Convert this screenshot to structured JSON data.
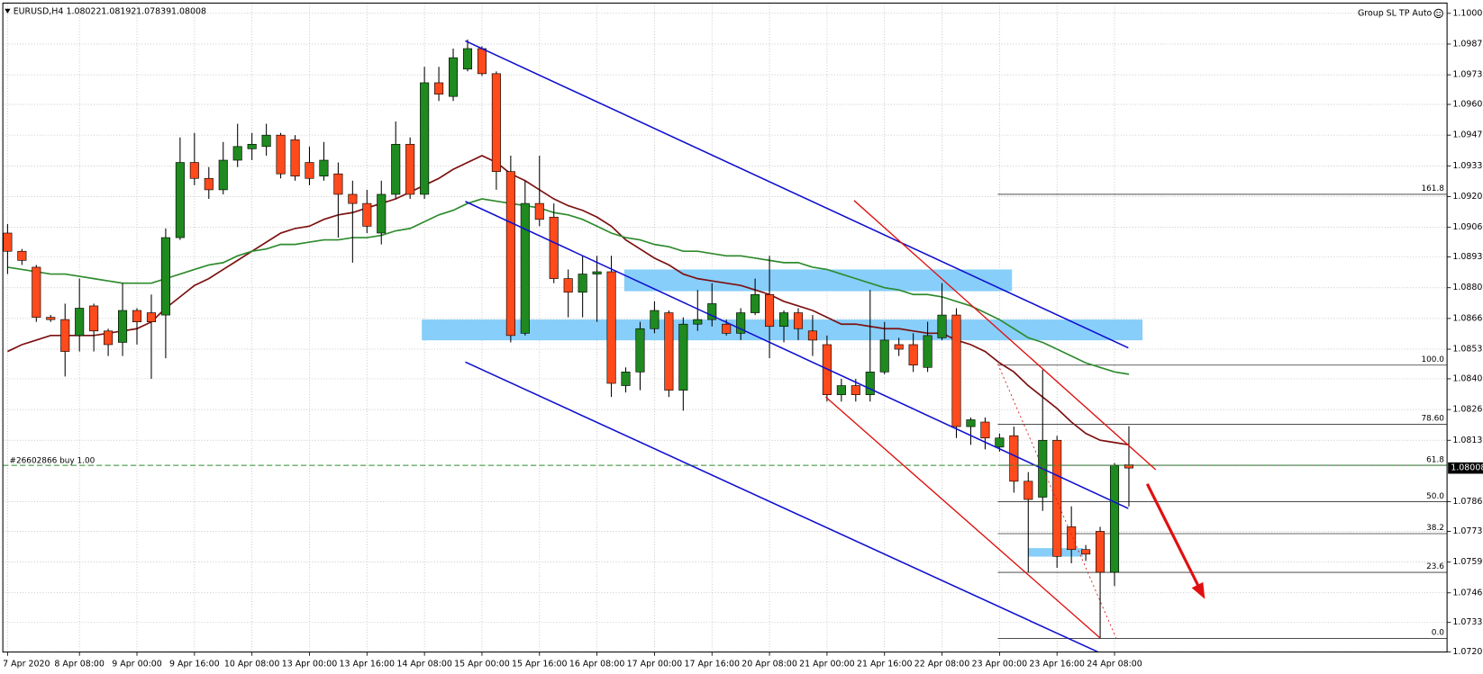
{
  "chart_data": {
    "type": "candlestick",
    "symbol": "EURUSD,H4",
    "toolbar_text": "Group SL TP Auto",
    "categories": [
      "7 Apr 2020",
      null,
      null,
      null,
      null,
      "8 Apr 08:00",
      null,
      null,
      null,
      "9 Apr 00:00",
      null,
      null,
      null,
      "9 Apr 16:00",
      null,
      null,
      null,
      "10 Apr 08:00",
      null,
      null,
      null,
      "13 Apr 00:00",
      null,
      null,
      null,
      "13 Apr 16:00",
      null,
      null,
      null,
      "14 Apr 08:00",
      null,
      null,
      null,
      "15 Apr 00:00",
      null,
      null,
      null,
      "15 Apr 16:00",
      null,
      null,
      null,
      "16 Apr 08:00",
      null,
      null,
      null,
      "17 Apr 00:00",
      null,
      null,
      null,
      "17 Apr 16:00",
      null,
      null,
      null,
      "20 Apr 08:00",
      null,
      null,
      null,
      "21 Apr 00:00",
      null,
      null,
      null,
      "21 Apr 16:00",
      null,
      null,
      null,
      "22 Apr 08:00",
      null,
      null,
      null,
      "23 Apr 00:00",
      null,
      null,
      null,
      "23 Apr 16:00",
      null,
      null,
      null,
      "24 Apr 08:00",
      null
    ],
    "open": [
      1.0904,
      1.0896,
      1.0889,
      1.0867,
      1.0866,
      1.0859,
      1.0872,
      1.0861,
      1.0856,
      1.087,
      1.0869,
      1.0868,
      1.0902,
      1.0935,
      1.0928,
      1.0923,
      1.0936,
      1.0941,
      1.0942,
      1.0947,
      1.0945,
      1.0935,
      1.0929,
      1.093,
      1.0921,
      1.0917,
      1.0904,
      1.0921,
      1.0943,
      1.0921,
      1.097,
      1.0964,
      1.0976,
      1.0985,
      1.0974,
      1.0931,
      1.086,
      1.0917,
      1.0911,
      1.0884,
      1.0878,
      1.0886,
      1.0887,
      1.0837,
      1.0843,
      1.0862,
      1.0869,
      1.0835,
      1.0864,
      1.0866,
      1.0864,
      1.086,
      1.0869,
      1.0877,
      1.0863,
      1.0869,
      1.0861,
      1.0855,
      1.0833,
      1.0837,
      1.0833,
      1.0843,
      1.0855,
      1.0855,
      1.0845,
      1.0858,
      1.0868,
      1.0819,
      1.0821,
      1.081,
      1.0815,
      1.0795,
      1.0788,
      1.0813,
      1.0775,
      1.0765,
      1.0773,
      1.0755,
      1.08022
    ],
    "high": [
      1.0908,
      1.0897,
      1.089,
      1.0868,
      1.0873,
      1.0884,
      1.0873,
      1.0862,
      1.0882,
      1.0871,
      1.0877,
      1.0906,
      1.0946,
      1.0948,
      1.0933,
      1.0944,
      1.0952,
      1.0948,
      1.0952,
      1.0948,
      1.0947,
      1.0942,
      1.0944,
      1.0935,
      1.0927,
      1.0923,
      1.0927,
      1.0953,
      1.0946,
      1.0977,
      1.0977,
      1.0985,
      1.0989,
      1.0986,
      1.0975,
      1.0938,
      1.0927,
      1.0938,
      1.0917,
      1.0888,
      1.0894,
      1.0894,
      1.0894,
      1.0845,
      1.0865,
      1.0874,
      1.087,
      1.0867,
      1.0879,
      1.0882,
      1.0866,
      1.0871,
      1.0884,
      1.0894,
      1.087,
      1.0871,
      1.0868,
      1.0859,
      1.084,
      1.084,
      1.0879,
      1.0865,
      1.0858,
      1.086,
      1.0865,
      1.0882,
      1.0871,
      1.0823,
      1.0823,
      1.0816,
      1.0819,
      1.0799,
      1.0844,
      1.0815,
      1.0784,
      1.0767,
      1.0775,
      1.0803,
      1.08192
    ],
    "low": [
      1.0886,
      1.089,
      1.0865,
      1.0865,
      1.0841,
      1.0852,
      1.0852,
      1.085,
      1.085,
      1.0855,
      1.084,
      1.0849,
      1.0901,
      1.0925,
      1.0919,
      1.0921,
      1.0933,
      1.0936,
      1.0938,
      1.0928,
      1.0927,
      1.0925,
      1.0927,
      1.0902,
      1.0891,
      1.0904,
      1.0899,
      1.0919,
      1.0919,
      1.0919,
      1.0962,
      1.0962,
      1.0975,
      1.0973,
      1.0923,
      1.0856,
      1.0859,
      1.0907,
      1.0882,
      1.0867,
      1.0867,
      1.0865,
      1.0832,
      1.0834,
      1.0835,
      1.086,
      1.0832,
      1.0826,
      1.0861,
      1.0863,
      1.0859,
      1.0857,
      1.0868,
      1.0849,
      1.0856,
      1.0857,
      1.085,
      1.083,
      1.083,
      1.083,
      1.083,
      1.0842,
      1.085,
      1.0843,
      1.0843,
      1.0857,
      1.0814,
      1.0811,
      1.0809,
      1.0808,
      1.079,
      1.0755,
      1.0782,
      1.0757,
      1.0759,
      1.076,
      1.0726,
      1.0749,
      1.07839
    ],
    "close": [
      1.0896,
      1.0892,
      1.0867,
      1.0866,
      1.0852,
      1.0871,
      1.0861,
      1.0855,
      1.087,
      1.0865,
      1.0865,
      1.0902,
      1.0935,
      1.0928,
      1.0923,
      1.0936,
      1.0942,
      1.0943,
      1.0947,
      1.093,
      1.0929,
      1.0928,
      1.0936,
      1.0921,
      1.0917,
      1.0907,
      1.0921,
      1.0943,
      1.0921,
      1.097,
      1.0965,
      1.0981,
      1.0985,
      1.0974,
      1.0931,
      1.0859,
      1.0917,
      1.091,
      1.0884,
      1.0878,
      1.0886,
      1.0887,
      1.0838,
      1.0843,
      1.0862,
      1.087,
      1.0835,
      1.0864,
      1.0866,
      1.0873,
      1.086,
      1.0869,
      1.0877,
      1.0863,
      1.0869,
      1.0862,
      1.0857,
      1.0833,
      1.0837,
      1.0833,
      1.0843,
      1.0857,
      1.0853,
      1.0846,
      1.0859,
      1.0868,
      1.0819,
      1.0822,
      1.0814,
      1.0814,
      1.0795,
      1.0787,
      1.0813,
      1.0762,
      1.0765,
      1.0763,
      1.0755,
      1.0802,
      1.08008
    ],
    "up_color": "#1f8a1f",
    "down_color": "#ff4a1c",
    "moving_averages": [
      {
        "color": "#7d1010",
        "values": [
          1.0852,
          1.0855,
          1.0857,
          1.0859,
          1.0859,
          1.0859,
          1.0859,
          1.086,
          1.0861,
          1.0862,
          1.0865,
          1.0871,
          1.0876,
          1.0881,
          1.0884,
          1.0888,
          1.0892,
          1.0896,
          1.09,
          1.0904,
          1.0906,
          1.0907,
          1.091,
          1.0912,
          1.0913,
          1.0915,
          1.0917,
          1.0919,
          1.0922,
          1.0925,
          1.0928,
          1.0932,
          1.0935,
          1.0938,
          1.0935,
          1.093,
          1.0927,
          1.0923,
          1.0919,
          1.0916,
          1.0914,
          1.0911,
          1.0907,
          1.0901,
          1.0897,
          1.0893,
          1.089,
          1.0886,
          1.0884,
          1.0883,
          1.0882,
          1.0881,
          1.0879,
          1.0877,
          1.0874,
          1.0872,
          1.087,
          1.0867,
          1.0864,
          1.0864,
          1.0863,
          1.0862,
          1.0862,
          1.0861,
          1.086,
          1.086,
          1.0857,
          1.0855,
          1.0852,
          1.0847,
          1.0843,
          1.0837,
          1.0832,
          1.0827,
          1.0821,
          1.0816,
          1.0813,
          1.0812,
          1.0811
        ]
      },
      {
        "color": "#2e8b2e",
        "values": [
          1.0889,
          1.0888,
          1.0887,
          1.0886,
          1.0886,
          1.0885,
          1.0884,
          1.0883,
          1.0882,
          1.0882,
          1.0882,
          1.0884,
          1.0886,
          1.0888,
          1.089,
          1.0891,
          1.0894,
          1.0896,
          1.0897,
          1.0899,
          1.0899,
          1.09,
          1.0901,
          1.0901,
          1.0902,
          1.0902,
          1.0903,
          1.0905,
          1.0906,
          1.0909,
          1.0912,
          1.0914,
          1.0917,
          1.0919,
          1.0918,
          1.0917,
          1.0916,
          1.0915,
          1.0913,
          1.0912,
          1.091,
          1.0907,
          1.0904,
          1.0902,
          1.0901,
          1.0899,
          1.0898,
          1.0896,
          1.0896,
          1.0895,
          1.0894,
          1.0894,
          1.0893,
          1.0892,
          1.0891,
          1.0891,
          1.0889,
          1.0888,
          1.0886,
          1.0884,
          1.0882,
          1.088,
          1.0879,
          1.0877,
          1.0877,
          1.0876,
          1.0874,
          1.0872,
          1.0869,
          1.0866,
          1.0862,
          1.0858,
          1.0856,
          1.0853,
          1.085,
          1.0847,
          1.0845,
          1.0843,
          1.0842
        ]
      }
    ],
    "fibo_levels": [
      {
        "label": "161.8",
        "price": 1.0921
      },
      {
        "label": "100.0",
        "price": 1.0846
      },
      {
        "label": "78.60",
        "price": 1.082
      },
      {
        "label": "61.8",
        "price": 1.0802
      },
      {
        "label": "50.0",
        "price": 1.0786
      },
      {
        "label": "38.2",
        "price": 1.0772
      },
      {
        "label": "23.6",
        "price": 1.0755
      },
      {
        "label": "0.0",
        "price": 1.0726
      }
    ],
    "order": {
      "label": "#26602866 buy 1.00",
      "price": 1.0802
    },
    "ylim": [
      1.072,
      1.1005
    ],
    "yticks": [
      1.10005,
      {
        "value": 1.0987,
        "label": "1.09870"
      },
      1.09735,
      1.09605,
      {
        "value": 1.0947,
        "label": "1.09470"
      },
      1.09335,
      {
        "value": 1.092,
        "label": "1.09200"
      },
      1.09065,
      1.08935,
      {
        "value": 1.088,
        "label": "1.08800"
      },
      1.08665,
      {
        "value": 1.0853,
        "label": "1.08530"
      },
      {
        "value": 1.084,
        "label": "1.08400"
      },
      1.08265,
      {
        "value": 1.0813,
        "label": "1.08130"
      },
      {
        "value": 1.0786,
        "label": "1.07860"
      },
      {
        "value": 1.0773,
        "label": "1.07730"
      },
      1.07595,
      {
        "value": 1.0746,
        "label": "1.07460"
      },
      {
        "value": 1.0733,
        "label": "1.07330"
      },
      {
        "value": 1.072,
        "label": "1.07200"
      }
    ],
    "grid": true
  }
}
